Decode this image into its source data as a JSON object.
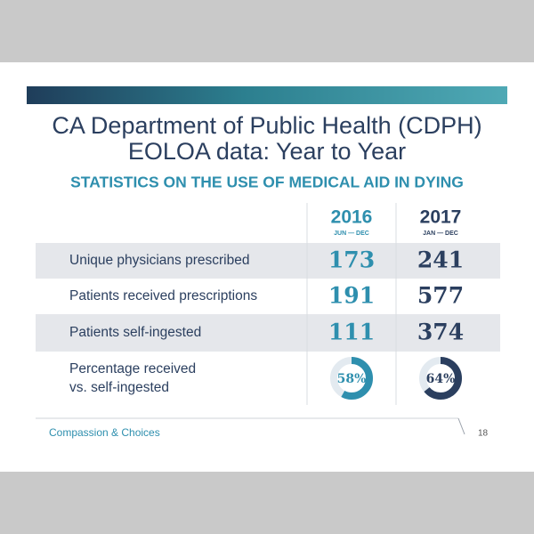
{
  "header": {
    "title_lines": [
      "CA Department of Public Health (CDPH)",
      "EOLOA data: Year to Year"
    ],
    "subtitle": "STATISTICS ON THE USE OF MEDICAL AID IN DYING"
  },
  "table": {
    "columns": [
      {
        "year": "2016",
        "period": "JUN — DEC",
        "color": "#2e8fae"
      },
      {
        "year": "2017",
        "period": "JAN — DEC",
        "color": "#2b3f5f"
      }
    ],
    "rows": [
      {
        "label": "Unique physicians prescribed",
        "values": [
          173,
          241
        ]
      },
      {
        "label": "Patients received prescriptions",
        "values": [
          191,
          577
        ]
      },
      {
        "label": "Patients self-ingested",
        "values": [
          111,
          374
        ]
      }
    ],
    "percentage_row": {
      "label_lines": [
        "Percentage received",
        "vs. self-ingested"
      ],
      "values": [
        58,
        64
      ],
      "value_labels": [
        "58%",
        "64%"
      ]
    }
  },
  "footer": {
    "brand": "Compassion & Choices",
    "page": 18
  }
}
